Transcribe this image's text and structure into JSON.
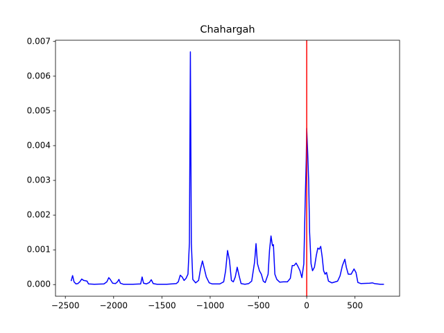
{
  "chart_data": {
    "type": "line",
    "title": "Chahargah",
    "x": [
      -2440,
      -2425,
      -2410,
      -2390,
      -2370,
      -2350,
      -2330,
      -2310,
      -2290,
      -2275,
      -2260,
      -2200,
      -2100,
      -2070,
      -2050,
      -2035,
      -2010,
      -1980,
      -1960,
      -1945,
      -1930,
      -1900,
      -1800,
      -1720,
      -1705,
      -1690,
      -1660,
      -1630,
      -1610,
      -1590,
      -1550,
      -1450,
      -1350,
      -1330,
      -1310,
      -1290,
      -1270,
      -1250,
      -1230,
      -1215,
      -1205,
      -1195,
      -1180,
      -1150,
      -1120,
      -1100,
      -1080,
      -1060,
      -1040,
      -1010,
      -980,
      -900,
      -860,
      -840,
      -820,
      -800,
      -780,
      -760,
      -740,
      -720,
      -700,
      -680,
      -640,
      -600,
      -570,
      -540,
      -525,
      -510,
      -490,
      -470,
      -450,
      -430,
      -400,
      -385,
      -370,
      -355,
      -345,
      -330,
      -310,
      -280,
      -240,
      -200,
      -170,
      -150,
      -130,
      -110,
      -90,
      -70,
      -50,
      -30,
      -15,
      -5,
      0,
      10,
      20,
      30,
      45,
      60,
      80,
      100,
      115,
      130,
      145,
      160,
      175,
      190,
      205,
      225,
      260,
      320,
      345,
      370,
      395,
      410,
      430,
      460,
      490,
      510,
      530,
      560,
      650,
      680,
      700,
      760,
      800
    ],
    "series": [
      {
        "color": "#0000ff",
        "values": [
          0.0001,
          0.00026,
          8e-05,
          2e-05,
          3e-05,
          8e-05,
          0.00016,
          0.00012,
          0.00011,
          0.0001,
          2e-05,
          1e-05,
          2e-05,
          8e-05,
          0.0002,
          0.00015,
          4e-05,
          3e-05,
          8e-05,
          0.00015,
          4e-05,
          1e-05,
          1e-05,
          2e-05,
          0.00022,
          4e-05,
          2e-05,
          6e-05,
          0.00014,
          3e-05,
          1e-05,
          1e-05,
          3e-05,
          8e-05,
          0.00027,
          0.00022,
          0.00012,
          0.00018,
          0.0003,
          0.0012,
          0.0067,
          0.0012,
          0.00015,
          5e-05,
          0.00012,
          0.00045,
          0.00068,
          0.00045,
          0.00022,
          5e-05,
          2e-05,
          2e-05,
          8e-05,
          0.0004,
          0.00098,
          0.0007,
          0.00012,
          8e-05,
          0.00022,
          0.0005,
          0.00025,
          3e-05,
          1e-05,
          3e-05,
          0.0001,
          0.00065,
          0.00118,
          0.0006,
          0.0004,
          0.0003,
          0.0001,
          6e-05,
          0.0003,
          0.001,
          0.0014,
          0.00112,
          0.00115,
          0.0003,
          0.00015,
          7e-05,
          8e-05,
          8e-05,
          0.00018,
          0.00055,
          0.00055,
          0.00062,
          0.00052,
          0.0004,
          0.0002,
          0.0006,
          0.0025,
          0.0036,
          0.0045,
          0.0038,
          0.003,
          0.0015,
          0.0006,
          0.0004,
          0.0005,
          0.00085,
          0.00105,
          0.00102,
          0.0011,
          0.0008,
          0.0004,
          0.0003,
          0.00035,
          0.0001,
          5e-05,
          0.0001,
          0.00025,
          0.00055,
          0.00073,
          0.0005,
          0.0003,
          0.0003,
          0.00045,
          0.00035,
          6e-05,
          3e-05,
          4e-05,
          5e-05,
          3e-05,
          1e-05,
          1e-05
        ]
      }
    ],
    "vline": {
      "x": 0,
      "color": "#ff0000"
    },
    "xlim": [
      -2602,
      962
    ],
    "ylim": [
      -0.000335,
      0.007035
    ],
    "xticks": [
      {
        "value": -2500,
        "label": "−2500"
      },
      {
        "value": -2000,
        "label": "−2000"
      },
      {
        "value": -1500,
        "label": "−1500"
      },
      {
        "value": -1000,
        "label": "−1000"
      },
      {
        "value": -500,
        "label": "−500"
      },
      0,
      500
    ],
    "yticks": [
      {
        "value": 0,
        "label": "0.000"
      },
      {
        "value": 0.001,
        "label": "0.001"
      },
      {
        "value": 0.002,
        "label": "0.002"
      },
      {
        "value": 0.003,
        "label": "0.003"
      },
      {
        "value": 0.004,
        "label": "0.004"
      },
      {
        "value": 0.005,
        "label": "0.005"
      },
      {
        "value": 0.006,
        "label": "0.006"
      },
      {
        "value": 0.007,
        "label": "0.007"
      }
    ]
  }
}
